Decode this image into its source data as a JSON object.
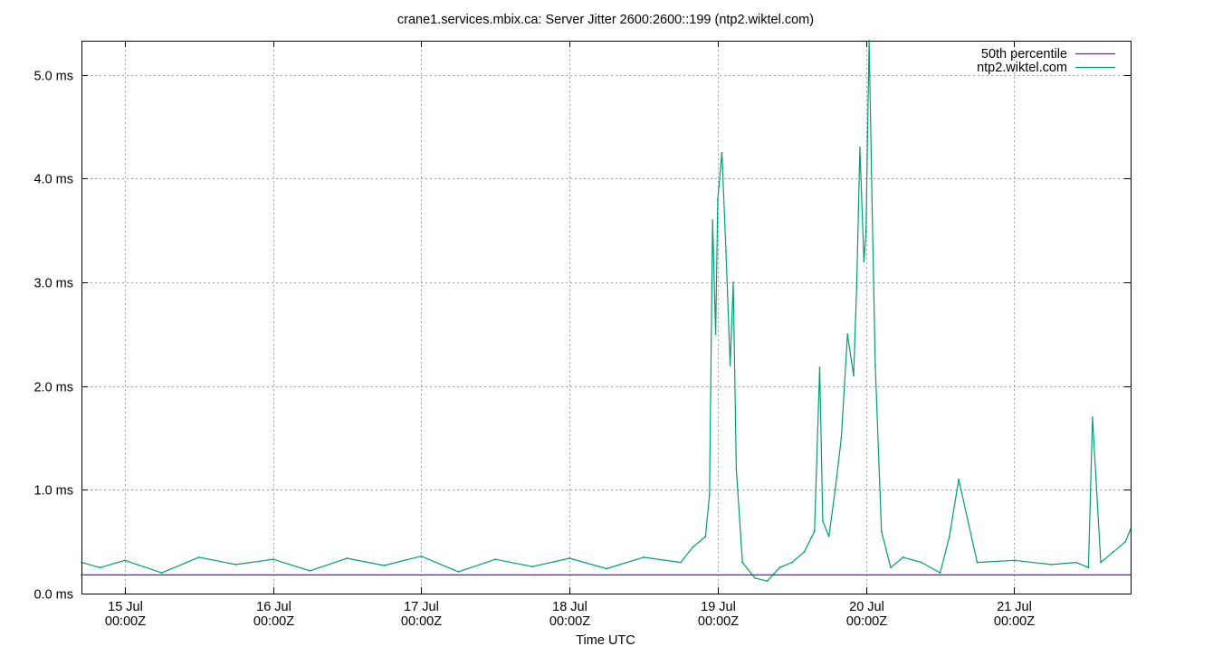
{
  "chart_data": {
    "type": "line",
    "title": "crane1.services.mbix.ca: Server Jitter 2600:2600::199 (ntp2.wiktel.com)",
    "xlabel": "Time UTC",
    "ylabel": "",
    "ylim": [
      0,
      5.33
    ],
    "xlim": [
      "2025-07-14 17:00",
      "2025-07-21 18:50"
    ],
    "yticks": [
      {
        "value": 0,
        "label": "0.0 ms"
      },
      {
        "value": 1,
        "label": "1.0 ms"
      },
      {
        "value": 2,
        "label": "2.0 ms"
      },
      {
        "value": 3,
        "label": "3.0 ms"
      },
      {
        "value": 4,
        "label": "4.0 ms"
      },
      {
        "value": 5,
        "label": "5.0 ms"
      }
    ],
    "xticks": [
      {
        "value": "2025-07-15 00:00",
        "line1": "15 Jul",
        "line2": "00:00Z"
      },
      {
        "value": "2025-07-16 00:00",
        "line1": "16 Jul",
        "line2": "00:00Z"
      },
      {
        "value": "2025-07-17 00:00",
        "line1": "17 Jul",
        "line2": "00:00Z"
      },
      {
        "value": "2025-07-18 00:00",
        "line1": "18 Jul",
        "line2": "00:00Z"
      },
      {
        "value": "2025-07-19 00:00",
        "line1": "19 Jul",
        "line2": "00:00Z"
      },
      {
        "value": "2025-07-20 00:00",
        "line1": "20 Jul",
        "line2": "00:00Z"
      },
      {
        "value": "2025-07-21 00:00",
        "line1": "21 Jul",
        "line2": "00:00Z"
      }
    ],
    "grid": true,
    "legend_position": "top-right",
    "series": [
      {
        "name": "50th percentile",
        "color": "#9400d3",
        "x": [
          "2025-07-14 17:00",
          "2025-07-21 18:50"
        ],
        "y": [
          0.18,
          0.18
        ]
      },
      {
        "name": "ntp2.wiktel.com",
        "color": "#009e73",
        "x": [
          "2025-07-14 17:00",
          "2025-07-14 20:00",
          "2025-07-15 00:00",
          "2025-07-15 06:00",
          "2025-07-15 12:00",
          "2025-07-15 18:00",
          "2025-07-16 00:00",
          "2025-07-16 06:00",
          "2025-07-16 12:00",
          "2025-07-16 18:00",
          "2025-07-17 00:00",
          "2025-07-17 06:00",
          "2025-07-17 12:00",
          "2025-07-17 18:00",
          "2025-07-18 00:00",
          "2025-07-18 06:00",
          "2025-07-18 12:00",
          "2025-07-18 18:00",
          "2025-07-18 20:00",
          "2025-07-18 22:00",
          "2025-07-18 22:40",
          "2025-07-18 23:10",
          "2025-07-18 23:40",
          "2025-07-19 00:00",
          "2025-07-19 00:40",
          "2025-07-19 01:20",
          "2025-07-19 02:00",
          "2025-07-19 02:30",
          "2025-07-19 03:00",
          "2025-07-19 04:00",
          "2025-07-19 06:00",
          "2025-07-19 08:00",
          "2025-07-19 10:00",
          "2025-07-19 12:00",
          "2025-07-19 14:00",
          "2025-07-19 15:40",
          "2025-07-19 16:30",
          "2025-07-19 17:00",
          "2025-07-19 18:00",
          "2025-07-19 19:00",
          "2025-07-19 20:00",
          "2025-07-19 21:00",
          "2025-07-19 22:00",
          "2025-07-19 22:30",
          "2025-07-19 23:00",
          "2025-07-19 23:40",
          "2025-07-20 00:00",
          "2025-07-20 00:30",
          "2025-07-20 01:00",
          "2025-07-20 01:30",
          "2025-07-20 02:30",
          "2025-07-20 04:00",
          "2025-07-20 06:00",
          "2025-07-20 09:00",
          "2025-07-20 12:00",
          "2025-07-20 13:30",
          "2025-07-20 15:00",
          "2025-07-20 18:00",
          "2025-07-21 00:00",
          "2025-07-21 06:00",
          "2025-07-21 10:00",
          "2025-07-21 12:00",
          "2025-07-21 12:40",
          "2025-07-21 14:00",
          "2025-07-21 16:00",
          "2025-07-21 18:00",
          "2025-07-21 18:50"
        ],
        "y": [
          0.3,
          0.25,
          0.32,
          0.2,
          0.35,
          0.28,
          0.33,
          0.22,
          0.34,
          0.27,
          0.36,
          0.21,
          0.33,
          0.26,
          0.34,
          0.24,
          0.35,
          0.3,
          0.45,
          0.55,
          0.95,
          3.6,
          2.5,
          3.8,
          4.25,
          3.3,
          2.2,
          3.0,
          1.2,
          0.3,
          0.15,
          0.12,
          0.25,
          0.3,
          0.4,
          0.6,
          2.18,
          0.7,
          0.55,
          1.0,
          1.5,
          2.5,
          2.1,
          3.0,
          4.3,
          3.2,
          3.5,
          5.33,
          3.7,
          2.2,
          0.6,
          0.25,
          0.35,
          0.3,
          0.2,
          0.55,
          1.1,
          0.3,
          0.32,
          0.28,
          0.3,
          0.25,
          1.7,
          0.3,
          0.4,
          0.5,
          0.62
        ]
      }
    ]
  }
}
